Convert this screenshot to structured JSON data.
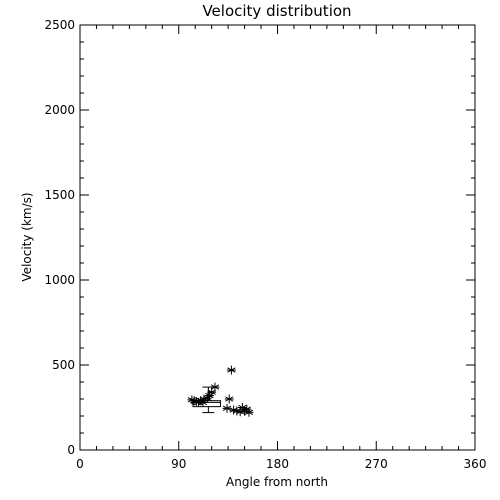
{
  "chart_data": {
    "type": "scatter",
    "title": "Velocity distribution",
    "xlabel": "Angle from north",
    "ylabel": "Velocity (km/s)",
    "xlim": [
      0,
      360
    ],
    "ylim": [
      0,
      2500
    ],
    "xticks": [
      0,
      90,
      180,
      270,
      360
    ],
    "yticks": [
      0,
      500,
      1000,
      1500,
      2000,
      2500
    ],
    "xtick_labels": [
      "0",
      "90",
      "180",
      "270",
      "360"
    ],
    "ytick_labels": [
      "0",
      "500",
      "1000",
      "1500",
      "2000",
      "2500"
    ],
    "grid": false,
    "marker": "asterisk",
    "series": [
      {
        "points": [
          {
            "x": 102,
            "y": 295
          },
          {
            "x": 104,
            "y": 290
          },
          {
            "x": 106,
            "y": 285
          },
          {
            "x": 108,
            "y": 280
          },
          {
            "x": 110,
            "y": 290
          },
          {
            "x": 112,
            "y": 280
          },
          {
            "x": 113,
            "y": 300
          },
          {
            "x": 116,
            "y": 305
          },
          {
            "x": 118,
            "y": 320
          },
          {
            "x": 120,
            "y": 340
          },
          {
            "x": 123,
            "y": 370
          },
          {
            "x": 134,
            "y": 245
          },
          {
            "x": 136,
            "y": 300
          },
          {
            "x": 138,
            "y": 470
          },
          {
            "x": 140,
            "y": 235
          },
          {
            "x": 143,
            "y": 230
          },
          {
            "x": 146,
            "y": 225
          },
          {
            "x": 148,
            "y": 250
          },
          {
            "x": 150,
            "y": 228
          },
          {
            "x": 152,
            "y": 240
          },
          {
            "x": 154,
            "y": 222
          }
        ]
      }
    ],
    "summary_box": {
      "x_low": 103,
      "x_high": 128,
      "q1": 255,
      "median": 280,
      "q3": 290,
      "whisker_low": 220,
      "whisker_high": 370,
      "whisker_x": 117
    }
  }
}
